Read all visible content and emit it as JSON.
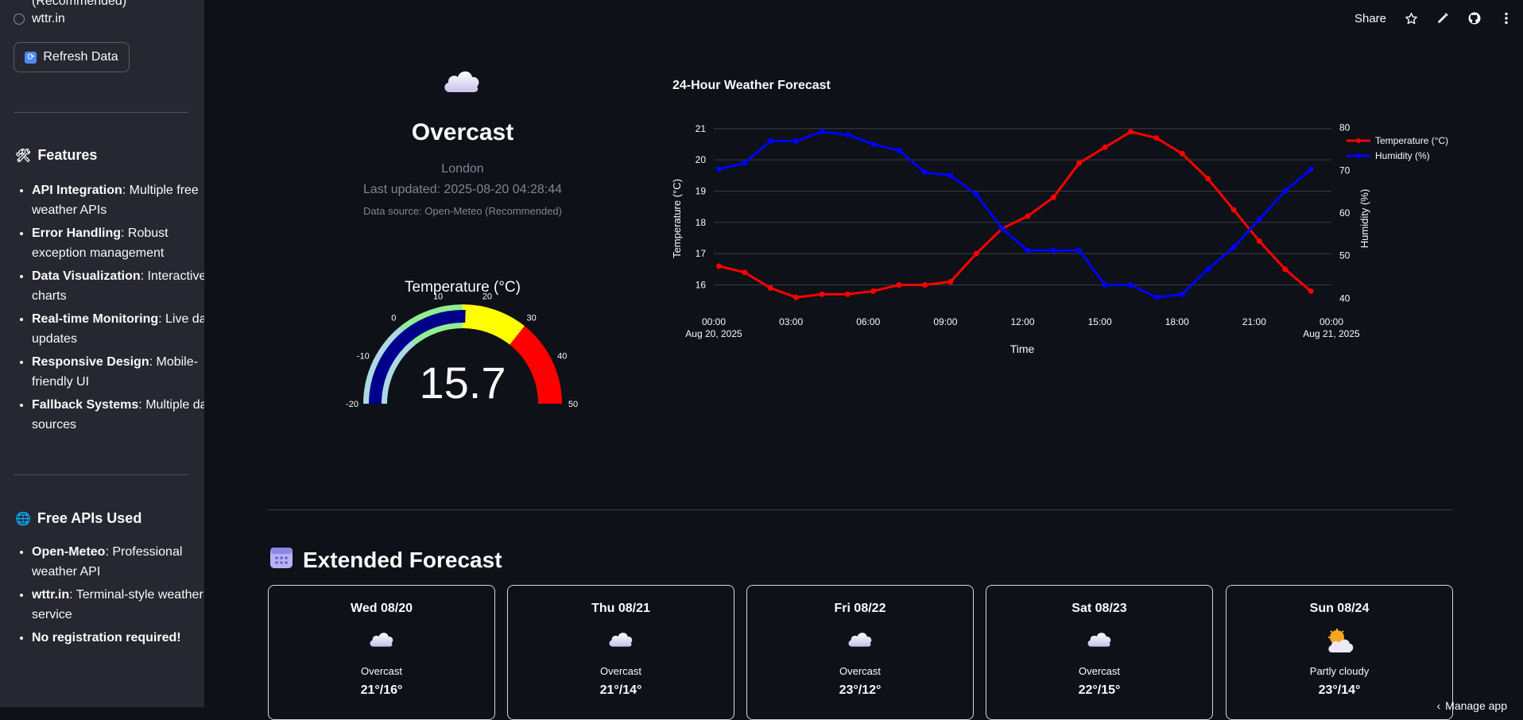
{
  "sidebar": {
    "cut_text": "(Recommended)",
    "radio_label": "wttr.in",
    "refresh_label": "Refresh Data",
    "features_title": "Features",
    "features": [
      {
        "bold": "API Integration",
        "text": ": Multiple free weather APIs"
      },
      {
        "bold": "Error Handling",
        "text": ": Robust exception management"
      },
      {
        "bold": "Data Visualization",
        "text": ": Interactive charts"
      },
      {
        "bold": "Real-time Monitoring",
        "text": ": Live data updates"
      },
      {
        "bold": "Responsive Design",
        "text": ": Mobile-friendly UI"
      },
      {
        "bold": "Fallback Systems",
        "text": ": Multiple data sources"
      }
    ],
    "apis_title": "Free APIs Used",
    "apis": [
      {
        "bold": "Open-Meteo",
        "text": ": Professional weather API"
      },
      {
        "bold": "wttr.in",
        "text": ": Terminal-style weather service"
      },
      {
        "bold": "No registration required!",
        "text": ""
      }
    ]
  },
  "header": {
    "share_label": "Share"
  },
  "current": {
    "condition": "Overcast",
    "location": "London",
    "updated": "Last updated: 2025-08-20 04:28:44",
    "source": "Data source: Open-Meteo (Recommended)"
  },
  "gauge": {
    "title": "Temperature (°C)",
    "value": 15.7,
    "value_text": "15.7",
    "min": -20,
    "max": 50,
    "ticks": [
      -20,
      -10,
      0,
      10,
      20,
      30,
      40,
      50
    ],
    "bands": [
      {
        "from": -20,
        "to": 0,
        "color": "#add8e6"
      },
      {
        "from": 0,
        "to": 15,
        "color": "#90ee90"
      },
      {
        "from": 15,
        "to": 30,
        "color": "#ffff00"
      },
      {
        "from": 30,
        "to": 50,
        "color": "#ff0000"
      }
    ],
    "bar_color": "#00008b"
  },
  "chart_data": {
    "type": "line",
    "title": "24-Hour Weather Forecast",
    "xlabel": "Time",
    "ylabel_left": "Temperature (°C)",
    "ylabel_right": "Humidity (%)",
    "x_ticks": [
      "00:00",
      "03:00",
      "06:00",
      "09:00",
      "12:00",
      "15:00",
      "18:00",
      "21:00",
      "00:00"
    ],
    "x_tick_sub": [
      "Aug 20, 2025",
      "",
      "",
      "",
      "",
      "",
      "",
      "",
      "Aug 21, 2025"
    ],
    "hours": [
      0,
      1,
      2,
      3,
      4,
      5,
      6,
      7,
      8,
      9,
      10,
      11,
      12,
      13,
      14,
      15,
      16,
      17,
      18,
      19,
      20,
      21,
      22,
      23
    ],
    "ylim_left": [
      15.3,
      21.3
    ],
    "y_ticks_left": [
      16,
      17,
      18,
      19,
      20,
      21
    ],
    "ylim_right": [
      38,
      82
    ],
    "y_ticks_right": [
      40,
      50,
      60,
      70,
      80
    ],
    "grid": true,
    "legend_position": "top-right",
    "series": [
      {
        "name": "Temperature (°C)",
        "color": "#ff0000",
        "axis": "left",
        "values": [
          16.6,
          16.4,
          15.9,
          15.6,
          15.7,
          15.7,
          15.8,
          16.0,
          16.0,
          16.1,
          17.0,
          17.8,
          18.2,
          18.8,
          19.9,
          20.4,
          20.9,
          20.7,
          20.2,
          19.4,
          18.4,
          17.4,
          16.5,
          15.8
        ]
      },
      {
        "name": "Humidity (%)",
        "color": "#0000ff",
        "axis": "left",
        "values": [
          19.7,
          19.9,
          20.6,
          20.6,
          20.9,
          20.8,
          20.5,
          20.3,
          19.6,
          19.5,
          18.9,
          17.8,
          17.1,
          17.1,
          17.1,
          16.0,
          16.0,
          15.6,
          15.7,
          16.5,
          17.2,
          18.1,
          19.0,
          19.7
        ]
      }
    ]
  },
  "extended": {
    "title": "Extended Forecast",
    "days": [
      {
        "day": "Wed 08/20",
        "icon": "cloud-icon",
        "condition": "Overcast",
        "temps": "21°/16°"
      },
      {
        "day": "Thu 08/21",
        "icon": "cloud-icon",
        "condition": "Overcast",
        "temps": "21°/14°"
      },
      {
        "day": "Fri 08/22",
        "icon": "cloud-icon",
        "condition": "Overcast",
        "temps": "23°/12°"
      },
      {
        "day": "Sat 08/23",
        "icon": "cloud-icon",
        "condition": "Overcast",
        "temps": "22°/15°"
      },
      {
        "day": "Sun 08/24",
        "icon": "sun-behind-cloud-icon",
        "condition": "Partly cloudy",
        "temps": "23°/14°"
      }
    ]
  },
  "footer": {
    "manage_label": "Manage app"
  }
}
